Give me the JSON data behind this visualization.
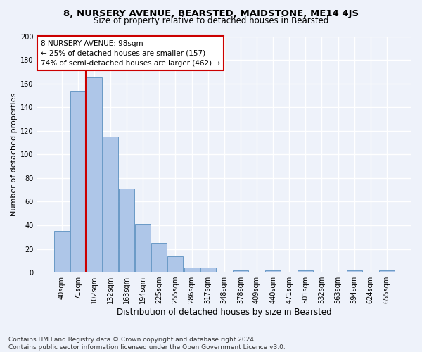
{
  "title": "8, NURSERY AVENUE, BEARSTED, MAIDSTONE, ME14 4JS",
  "subtitle": "Size of property relative to detached houses in Bearsted",
  "xlabel": "Distribution of detached houses by size in Bearsted",
  "ylabel": "Number of detached properties",
  "categories": [
    "40sqm",
    "71sqm",
    "102sqm",
    "132sqm",
    "163sqm",
    "194sqm",
    "225sqm",
    "255sqm",
    "286sqm",
    "317sqm",
    "348sqm",
    "378sqm",
    "409sqm",
    "440sqm",
    "471sqm",
    "501sqm",
    "532sqm",
    "563sqm",
    "594sqm",
    "624sqm",
    "655sqm"
  ],
  "values": [
    35,
    154,
    165,
    115,
    71,
    41,
    25,
    14,
    4,
    4,
    0,
    2,
    0,
    2,
    0,
    2,
    0,
    0,
    2,
    0,
    2
  ],
  "bar_color": "#aec6e8",
  "bar_edge_color": "#5a8fc0",
  "vline_color": "#cc0000",
  "vline_x_index": 1.5,
  "annotation_text": "8 NURSERY AVENUE: 98sqm\n← 25% of detached houses are smaller (157)\n74% of semi-detached houses are larger (462) →",
  "annotation_box_color": "#ffffff",
  "annotation_box_edge": "#cc0000",
  "ylim": [
    0,
    200
  ],
  "yticks": [
    0,
    20,
    40,
    60,
    80,
    100,
    120,
    140,
    160,
    180,
    200
  ],
  "footer": "Contains HM Land Registry data © Crown copyright and database right 2024.\nContains public sector information licensed under the Open Government Licence v3.0.",
  "background_color": "#eef2fa",
  "grid_color": "#ffffff",
  "title_fontsize": 9.5,
  "subtitle_fontsize": 8.5,
  "ylabel_fontsize": 8,
  "xlabel_fontsize": 8.5,
  "tick_fontsize": 7,
  "annotation_fontsize": 7.5,
  "footer_fontsize": 6.5
}
